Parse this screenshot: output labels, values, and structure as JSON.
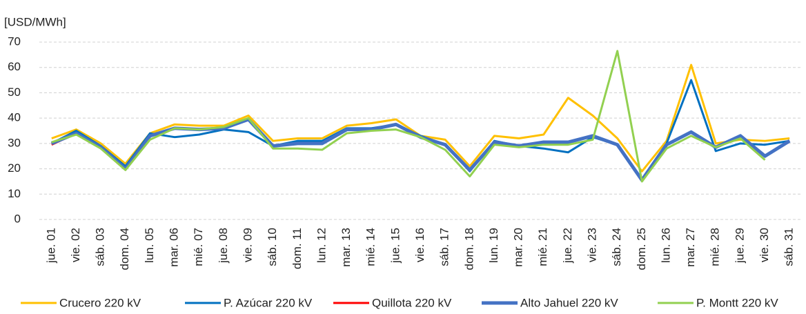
{
  "chart_data": {
    "type": "line",
    "y_label": "[USD/MWh]",
    "categories": [
      "jue. 01",
      "vie. 02",
      "sáb. 03",
      "dom. 04",
      "lun. 05",
      "mar. 06",
      "mié. 07",
      "jue. 08",
      "vie. 09",
      "sáb. 10",
      "dom. 11",
      "lun. 12",
      "mar. 13",
      "mié. 14",
      "jue. 15",
      "vie. 16",
      "sáb. 17",
      "dom. 18",
      "lun. 19",
      "mar. 20",
      "mié. 21",
      "jue. 22",
      "vie. 23",
      "sáb. 24",
      "dom. 25",
      "lun. 26",
      "mar. 27",
      "mié. 28",
      "jue. 29",
      "vie. 30",
      "sáb. 31"
    ],
    "series": [
      {
        "name": "Crucero 220 kV",
        "color": "#FFC000",
        "width": 3,
        "values": [
          32,
          35.5,
          30,
          22,
          34,
          37.5,
          37,
          37,
          41,
          31,
          32,
          32,
          37,
          38,
          39.5,
          33,
          31.5,
          21,
          33,
          32,
          33.5,
          48,
          41,
          32,
          19,
          31,
          61,
          30,
          31.5,
          31,
          32
        ]
      },
      {
        "name": "P. Azúcar 220 kV",
        "color": "#0070C0",
        "width": 3,
        "values": [
          30,
          35,
          29,
          21,
          34,
          32.5,
          33.5,
          35.5,
          34.5,
          29,
          31,
          31,
          36,
          36,
          37.5,
          33,
          29.5,
          19,
          31,
          29,
          28,
          26.5,
          32.5,
          29.5,
          16,
          30,
          55,
          27,
          30,
          29.5,
          31
        ]
      },
      {
        "name": "Quillota 220 kV",
        "color": "#FF0000",
        "width": 3,
        "values": [
          29.5,
          34,
          28.5,
          20,
          33,
          36,
          35.5,
          36,
          39.5,
          29,
          30,
          30,
          35.5,
          35.5,
          37.5,
          32.5,
          29.5,
          19.5,
          30.5,
          29,
          30.5,
          30.5,
          33,
          29.5,
          15.5,
          29.5,
          34.5,
          28.5,
          33,
          25,
          31
        ]
      },
      {
        "name": "Alto Jahuel 220 kV",
        "color": "#4472C4",
        "width": 5,
        "values": [
          30,
          34,
          28.5,
          20,
          33,
          36,
          35.5,
          36,
          39.5,
          29,
          30,
          30,
          35.5,
          35.5,
          37.5,
          32.5,
          29.5,
          19.5,
          30.5,
          29,
          30.5,
          30.5,
          33,
          29.5,
          15.5,
          29.5,
          34.5,
          28.5,
          33,
          25,
          31
        ]
      },
      {
        "name": "P. Montt 220 kV",
        "color": "#92D050",
        "width": 3,
        "values": [
          30.5,
          33.5,
          28,
          19.5,
          31.5,
          36,
          35.5,
          36.5,
          40,
          28,
          28,
          27.5,
          34,
          35,
          35.5,
          32.5,
          27.5,
          17,
          29.5,
          28.5,
          29.5,
          29.5,
          31.5,
          66.5,
          15,
          28,
          33,
          28.5,
          32,
          23.5,
          null
        ]
      }
    ],
    "ylim": [
      0,
      70
    ],
    "yticks": [
      0,
      10,
      20,
      30,
      40,
      50,
      60,
      70
    ],
    "grid": true
  }
}
